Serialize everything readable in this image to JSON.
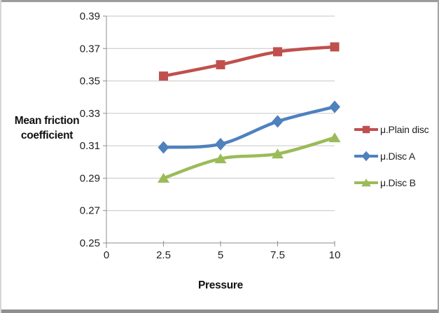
{
  "frame": {
    "background": "#ffffff",
    "border_color": "#9c9c9c"
  },
  "styles": {
    "gridline_color": "#c6c6c6",
    "axis_color": "#8e8e8e",
    "tick_text_color": "#1f1f1f",
    "title_text_color": "#111111"
  },
  "chart_data": {
    "type": "line",
    "title": "",
    "xlabel": "Pressure",
    "ylabel": "Mean friction coefficient",
    "xlim": [
      0,
      10
    ],
    "ylim": [
      0.25,
      0.39
    ],
    "x_ticks": [
      0,
      2.5,
      5,
      7.5,
      10
    ],
    "y_ticks": [
      0.25,
      0.27,
      0.29,
      0.31,
      0.33,
      0.35,
      0.37,
      0.39
    ],
    "grid": "horizontal gridlines on",
    "legend_position": "right",
    "x": [
      2.5,
      5,
      7.5,
      10
    ],
    "series": [
      {
        "name": "μ.Plain disc",
        "marker": "square",
        "color": "#C0504D",
        "values": [
          0.353,
          0.36,
          0.368,
          0.371
        ]
      },
      {
        "name": "μ.Disc A",
        "marker": "diamond",
        "color": "#4F81BD",
        "values": [
          0.309,
          0.311,
          0.325,
          0.334
        ]
      },
      {
        "name": "μ.Disc B",
        "marker": "triangle",
        "color": "#9BBB59",
        "values": [
          0.29,
          0.302,
          0.305,
          0.315
        ]
      }
    ]
  }
}
